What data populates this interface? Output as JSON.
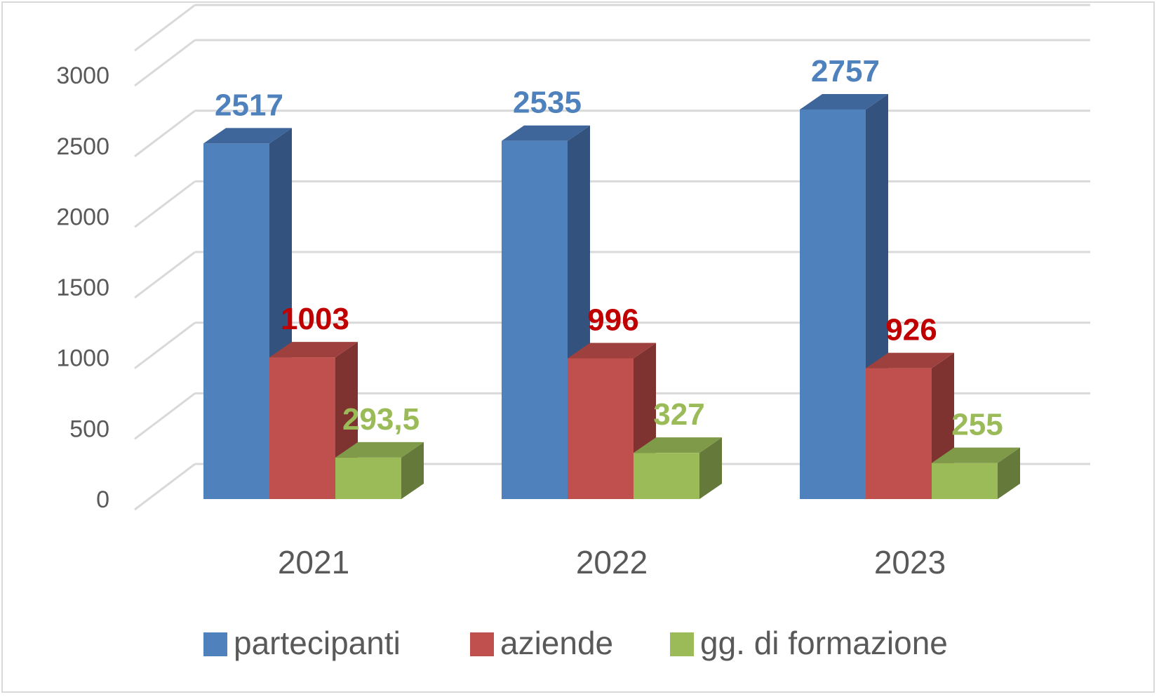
{
  "chart_data": {
    "type": "bar",
    "style": "3d-clustered-column",
    "categories": [
      "2021",
      "2022",
      "2023"
    ],
    "series": [
      {
        "name": "partecipanti",
        "values": [
          2517,
          2535,
          2757
        ],
        "labels": [
          "2517",
          "2535",
          "2757"
        ],
        "color": "#4F81BD",
        "side_color": "#33537E",
        "top_color": "#3E669A",
        "label_color": "#4F81BD"
      },
      {
        "name": "aziende",
        "values": [
          1003,
          996,
          926
        ],
        "labels": [
          "1003",
          "996",
          "926"
        ],
        "color": "#C0504D",
        "side_color": "#7F3331",
        "top_color": "#9E403D",
        "label_color": "#C00000"
      },
      {
        "name": "gg. di formazione",
        "values": [
          293.5,
          327,
          255
        ],
        "labels": [
          "293,5",
          "327",
          "255"
        ],
        "color": "#9BBB59",
        "side_color": "#64793A",
        "top_color": "#7F9A48",
        "label_color": "#9BBB59"
      }
    ],
    "yticks": [
      0,
      500,
      1000,
      1500,
      2000,
      2500,
      3000
    ],
    "ylim": [
      0,
      3000
    ],
    "grid": true,
    "legend_position": "bottom",
    "title": "",
    "xlabel": "",
    "ylabel": ""
  }
}
